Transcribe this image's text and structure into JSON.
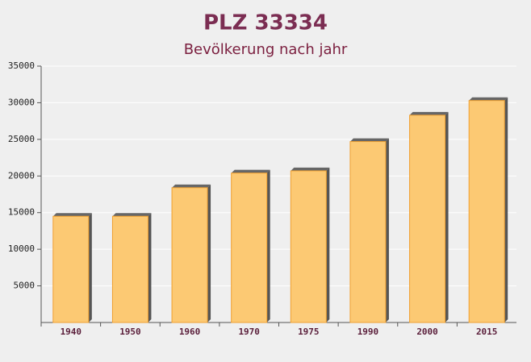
{
  "chart_data": {
    "type": "bar",
    "title": "PLZ 33334",
    "subtitle": "Bevölkerung nach jahr",
    "categories": [
      "1940",
      "1950",
      "1960",
      "1970",
      "1975",
      "1990",
      "2000",
      "2015"
    ],
    "values": [
      14500,
      14500,
      18400,
      20400,
      20700,
      24700,
      28300,
      30300
    ],
    "color": "#fcc66b",
    "ylim": [
      0,
      35000
    ],
    "yticks": [
      5000,
      10000,
      15000,
      20000,
      25000,
      30000,
      35000
    ],
    "grid": true
  }
}
